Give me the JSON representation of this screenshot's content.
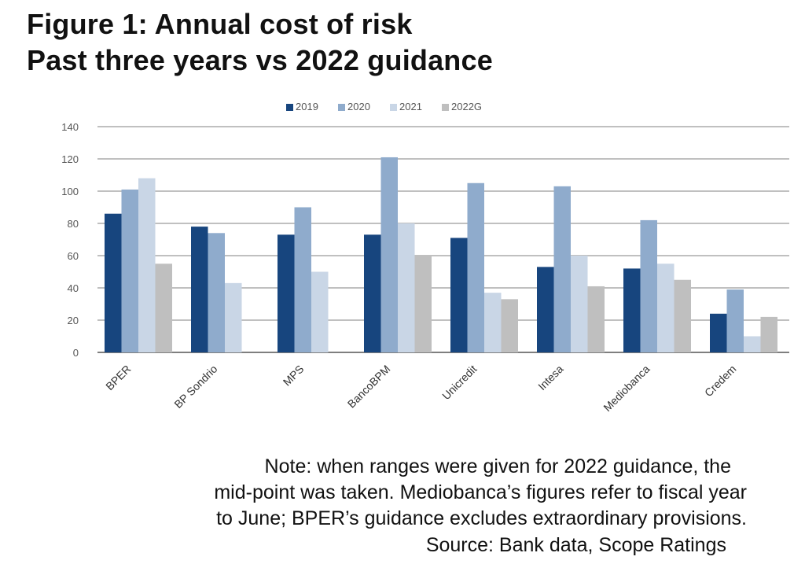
{
  "title_line1": "Figure 1: Annual cost of risk",
  "title_line2": "Past three years vs 2022 guidance",
  "note_lines": [
    "Note: when ranges were given for 2022 guidance, the",
    "mid-point was taken. Mediobanca’s figures refer to fiscal year",
    "to June; BPER’s guidance excludes extraordinary provisions."
  ],
  "source": "Source: Bank data, Scope Ratings",
  "chart_data": {
    "type": "bar",
    "categories": [
      "BPER",
      "BP Sondrio",
      "MPS",
      "BancoBPM",
      "Unicredit",
      "Intesa",
      "Mediobanca",
      "Credem"
    ],
    "series": [
      {
        "name": "2019",
        "color": "#17457e",
        "values": [
          86,
          78,
          73,
          73,
          71,
          53,
          52,
          24
        ]
      },
      {
        "name": "2020",
        "color": "#8fabcc",
        "values": [
          101,
          74,
          90,
          121,
          105,
          103,
          82,
          39
        ]
      },
      {
        "name": "2021",
        "color": "#c9d6e6",
        "values": [
          108,
          43,
          50,
          80,
          37,
          60,
          55,
          10
        ]
      },
      {
        "name": "2022G",
        "color": "#bfbfbf",
        "values": [
          55,
          0,
          0,
          60,
          33,
          41,
          45,
          22
        ]
      }
    ],
    "ylim": [
      0,
      140
    ],
    "yticks": [
      0,
      20,
      40,
      60,
      80,
      100,
      120,
      140
    ],
    "grid": true,
    "legend_position": "top"
  }
}
